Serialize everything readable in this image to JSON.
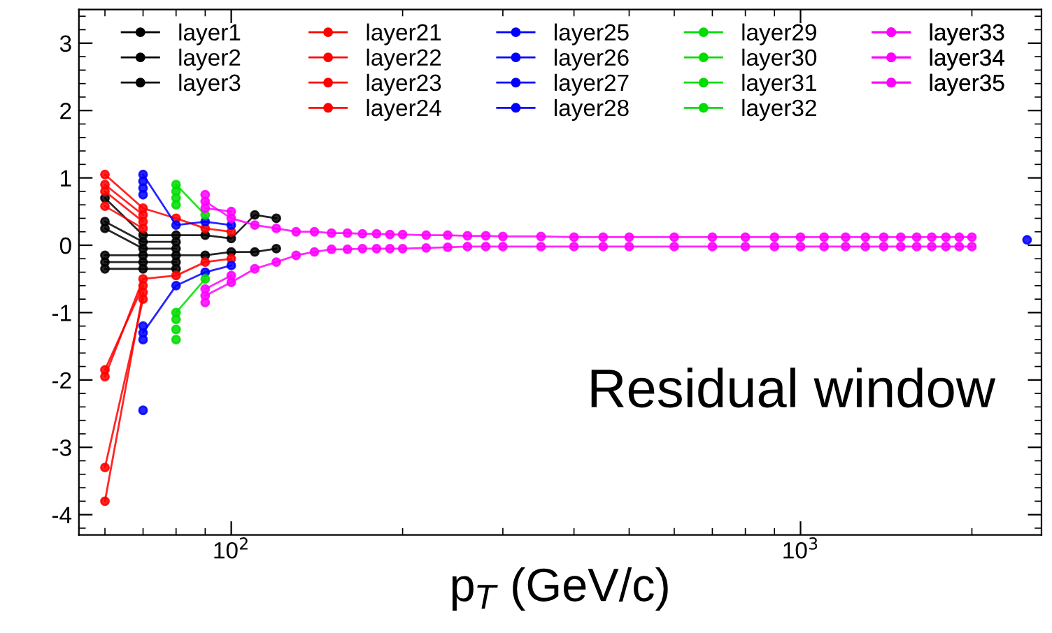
{
  "chart_data": {
    "type": "line",
    "xlabel": "p$_{T}$ (GeV/c)",
    "annotations": [
      "Residual window"
    ],
    "log": "x",
    "xlim": [
      54,
      2650
    ],
    "xticks": [
      {
        "value": 100,
        "label": "10$^{2}$"
      },
      {
        "value": 1000,
        "label": "10$^{3}$"
      }
    ],
    "ylim": [
      -4.3,
      3.5
    ],
    "yticks": [
      -4,
      -3,
      -2,
      -1,
      0,
      1,
      2,
      3
    ],
    "grid": false,
    "legend": "top",
    "marker": "circle",
    "line_style": "solid",
    "series": [
      {
        "name": "layer1",
        "color": "#000000",
        "x": [
          60,
          70,
          80,
          90,
          100,
          110,
          120
        ],
        "values": [
          0.7,
          0.15,
          0.15,
          0.15,
          0.1,
          0.45,
          0.4
        ]
      },
      {
        "color": "#000000",
        "x": [
          60,
          70,
          80,
          90,
          100,
          110,
          120
        ],
        "values": [
          -0.15,
          -0.15,
          -0.15,
          -0.15,
          -0.1,
          -0.1,
          -0.05
        ]
      },
      {
        "name": "layer2",
        "color": "#000000",
        "x": [
          60,
          70,
          80
        ],
        "values": [
          0.35,
          0.05,
          0.05
        ]
      },
      {
        "color": "#000000",
        "x": [
          60,
          70,
          80
        ],
        "values": [
          -0.25,
          -0.25,
          -0.25
        ]
      },
      {
        "name": "layer3",
        "color": "#000000",
        "x": [
          60,
          70,
          80
        ],
        "values": [
          0.25,
          -0.05,
          -0.05
        ]
      },
      {
        "color": "#000000",
        "x": [
          60,
          70,
          80
        ],
        "values": [
          -0.35,
          -0.35,
          -0.35
        ]
      },
      {
        "name": "layer21",
        "color": "#ff0000",
        "x": [
          60,
          70,
          80,
          90,
          100
        ],
        "values": [
          1.05,
          0.55,
          0.4,
          0.25,
          0.2
        ]
      },
      {
        "color": "#ff0000",
        "x": [
          60,
          70,
          80,
          90,
          100
        ],
        "values": [
          -1.95,
          -0.5,
          -0.45,
          -0.25,
          -0.2
        ]
      },
      {
        "name": "layer22",
        "color": "#ff0000",
        "x": [
          60,
          70
        ],
        "values": [
          0.9,
          0.45
        ]
      },
      {
        "color": "#ff0000",
        "x": [
          60,
          70
        ],
        "values": [
          -1.85,
          -0.6
        ]
      },
      {
        "name": "layer23",
        "color": "#ff0000",
        "x": [
          60,
          70
        ],
        "values": [
          0.8,
          0.35
        ]
      },
      {
        "color": "#ff0000",
        "x": [
          60,
          70
        ],
        "values": [
          -3.8,
          -0.7
        ]
      },
      {
        "name": "layer24",
        "color": "#ff0000",
        "x": [
          60,
          70
        ],
        "values": [
          0.58,
          0.25
        ]
      },
      {
        "color": "#ff0000",
        "x": [
          60,
          70
        ],
        "values": [
          -3.3,
          -0.8
        ]
      },
      {
        "name": "layer25",
        "color": "#0000ff",
        "x": [
          70,
          80,
          90,
          100,
          2000,
          2500
        ],
        "values": [
          1.05,
          0.3,
          0.35,
          0.3,
          null,
          0.08
        ]
      },
      {
        "color": "#0000ff",
        "x": [
          70,
          80,
          90,
          100
        ],
        "values": [
          -1.3,
          -0.6,
          -0.4,
          -0.3
        ]
      },
      {
        "name": "layer26",
        "color": "#0000ff",
        "x": [
          70
        ],
        "values": [
          0.95
        ]
      },
      {
        "color": "#0000ff",
        "x": [
          70
        ],
        "values": [
          -1.2
        ]
      },
      {
        "name": "layer27",
        "color": "#0000ff",
        "x": [
          70
        ],
        "values": [
          0.85
        ]
      },
      {
        "color": "#0000ff",
        "x": [
          70
        ],
        "values": [
          -2.45
        ]
      },
      {
        "name": "layer28",
        "color": "#0000ff",
        "x": [
          70
        ],
        "values": [
          0.75
        ]
      },
      {
        "color": "#0000ff",
        "x": [
          70
        ],
        "values": [
          -1.4
        ]
      },
      {
        "name": "layer29",
        "color": "#00dd00",
        "x": [
          80,
          90
        ],
        "values": [
          0.9,
          0.45
        ]
      },
      {
        "color": "#00dd00",
        "x": [
          80,
          90
        ],
        "values": [
          -1.0,
          -0.5
        ]
      },
      {
        "name": "layer30",
        "color": "#00dd00",
        "x": [
          80
        ],
        "values": [
          0.8
        ]
      },
      {
        "color": "#00dd00",
        "x": [
          80
        ],
        "values": [
          -1.1
        ]
      },
      {
        "name": "layer31",
        "color": "#00dd00",
        "x": [
          80
        ],
        "values": [
          0.7
        ]
      },
      {
        "color": "#00dd00",
        "x": [
          80
        ],
        "values": [
          -1.4
        ]
      },
      {
        "name": "layer32",
        "color": "#00dd00",
        "x": [
          80
        ],
        "values": [
          0.6
        ]
      },
      {
        "color": "#00dd00",
        "x": [
          80
        ],
        "values": [
          -1.25
        ]
      },
      {
        "name": "layer33",
        "color": "#ff00ff",
        "x": [
          90,
          100,
          110,
          120,
          130,
          140,
          150,
          160,
          170,
          180,
          190,
          200,
          220,
          240,
          260,
          280,
          300,
          350,
          400,
          450,
          500,
          600,
          700,
          800,
          900,
          1000,
          1100,
          1200,
          1300,
          1400,
          1500,
          1600,
          1700,
          1800,
          1900,
          2000
        ],
        "values": [
          0.65,
          0.4,
          0.3,
          0.25,
          0.2,
          0.2,
          0.18,
          0.18,
          0.17,
          0.17,
          0.16,
          0.16,
          0.15,
          0.15,
          0.14,
          0.14,
          0.13,
          0.13,
          0.12,
          0.12,
          0.12,
          0.12,
          0.12,
          0.12,
          0.12,
          0.12,
          0.12,
          0.12,
          0.12,
          0.12,
          0.12,
          0.12,
          0.12,
          0.12,
          0.12,
          0.12
        ]
      },
      {
        "color": "#ff00ff",
        "x": [
          90,
          100,
          110,
          120,
          130,
          140,
          150,
          160,
          170,
          180,
          190,
          200,
          220,
          240,
          260,
          280,
          300,
          350,
          400,
          450,
          500,
          600,
          700,
          800,
          900,
          1000,
          1100,
          1200,
          1300,
          1400,
          1500,
          1600,
          1700,
          1800,
          1900,
          2000
        ],
        "values": [
          -0.75,
          -0.55,
          -0.35,
          -0.25,
          -0.15,
          -0.1,
          -0.06,
          -0.06,
          -0.05,
          -0.05,
          -0.05,
          -0.05,
          -0.04,
          -0.03,
          -0.02,
          -0.02,
          -0.02,
          -0.02,
          -0.02,
          -0.02,
          -0.02,
          -0.02,
          -0.02,
          -0.02,
          -0.02,
          -0.02,
          -0.02,
          -0.02,
          -0.02,
          -0.02,
          -0.02,
          -0.02,
          -0.02,
          -0.02,
          -0.02,
          -0.02
        ]
      },
      {
        "name": "layer34",
        "color": "#ff00ff",
        "x": [
          90,
          100
        ],
        "values": [
          0.55,
          0.5
        ]
      },
      {
        "color": "#ff00ff",
        "x": [
          90,
          100
        ],
        "values": [
          -0.65,
          -0.45
        ]
      },
      {
        "name": "layer35",
        "color": "#ff00ff",
        "x": [
          90
        ],
        "values": [
          0.75
        ]
      },
      {
        "color": "#ff00ff",
        "x": [
          90
        ],
        "values": [
          -0.85
        ]
      }
    ]
  }
}
